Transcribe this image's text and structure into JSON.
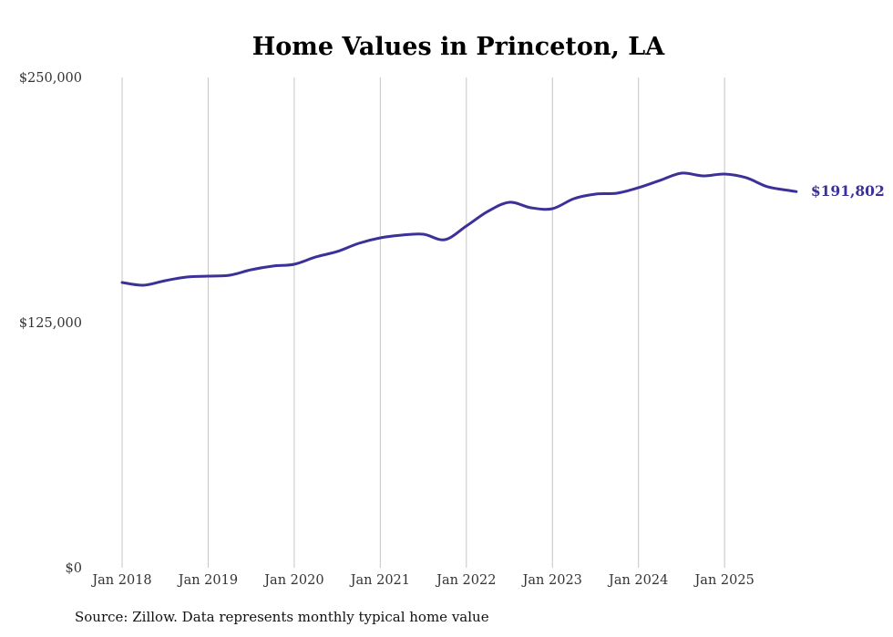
{
  "chart_data": {
    "type": "line",
    "title": "Home Values in Princeton, LA",
    "xlabel": "",
    "ylabel": "",
    "ylim": [
      0,
      250000
    ],
    "yticks": [
      0,
      125000,
      250000
    ],
    "ytick_labels": [
      "$0",
      "$125,000",
      "$250,000"
    ],
    "xtick_labels": [
      "Jan 2018",
      "Jan 2019",
      "Jan 2020",
      "Jan 2021",
      "Jan 2022",
      "Jan 2023",
      "Jan 2024",
      "Jan 2025"
    ],
    "grid": "vertical",
    "line_color": "#3b3199",
    "series": [
      {
        "name": "Typical home value",
        "x": [
          "2018-01",
          "2018-04",
          "2018-07",
          "2018-10",
          "2019-01",
          "2019-04",
          "2019-07",
          "2019-10",
          "2020-01",
          "2020-04",
          "2020-07",
          "2020-10",
          "2021-01",
          "2021-04",
          "2021-07",
          "2021-10",
          "2022-01",
          "2022-04",
          "2022-07",
          "2022-10",
          "2023-01",
          "2023-04",
          "2023-07",
          "2023-10",
          "2024-01",
          "2024-04",
          "2024-07",
          "2024-10",
          "2025-01",
          "2025-04",
          "2025-07",
          "2025-10",
          "2025-11"
        ],
        "values": [
          145450,
          144060,
          146380,
          148240,
          148700,
          149170,
          151960,
          153820,
          154750,
          158460,
          161250,
          165430,
          168220,
          169610,
          170080,
          167290,
          174260,
          181700,
          186350,
          183560,
          183090,
          188200,
          190530,
          191000,
          193780,
          197500,
          201220,
          199820,
          200750,
          198890,
          194240,
          192390,
          191802
        ]
      }
    ],
    "end_label": "$191,802"
  },
  "source": "Source: Zillow. Data represents monthly typical home value"
}
